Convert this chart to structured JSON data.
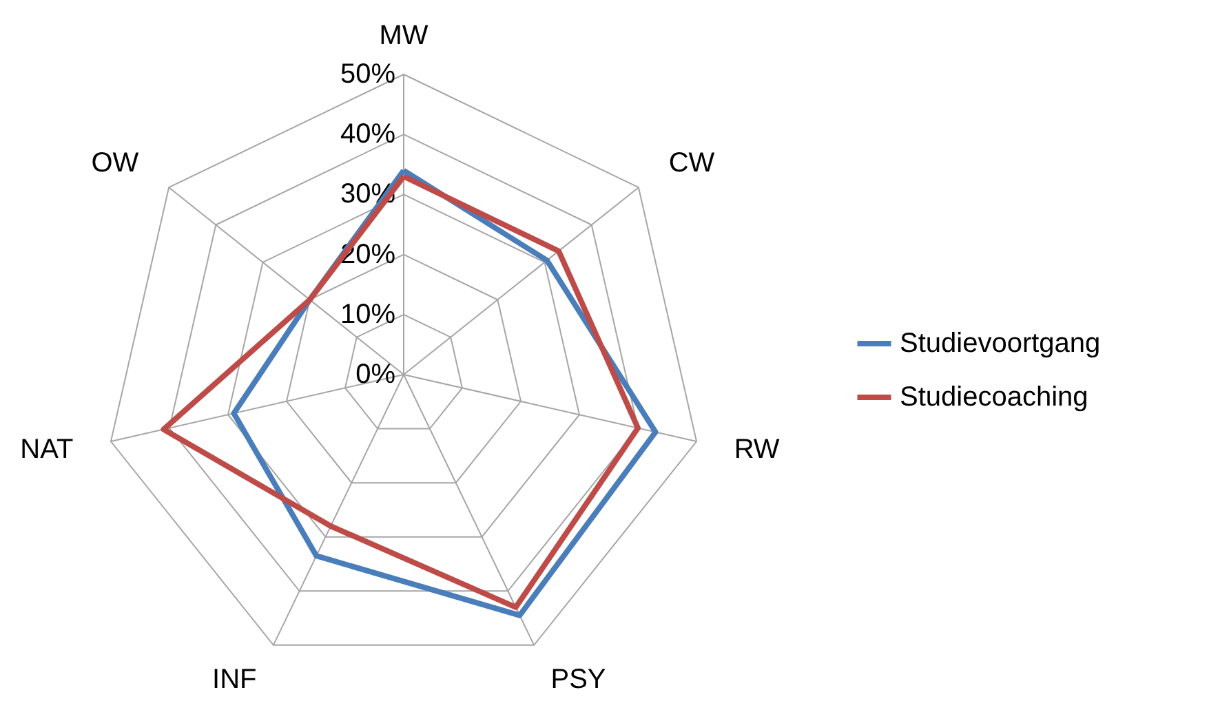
{
  "chart_data": {
    "type": "radar",
    "categories": [
      "MW",
      "CW",
      "RW",
      "PSY",
      "INF",
      "NAT",
      "OW"
    ],
    "series": [
      {
        "name": "Studievoortgang",
        "color": "#4a7ebb",
        "values": [
          34,
          30.5,
          43,
          44.5,
          33.5,
          29,
          20
        ]
      },
      {
        "name": "Studiecoaching",
        "color": "#be4b48",
        "values": [
          33,
          33,
          40,
          43,
          28,
          41,
          20
        ]
      }
    ],
    "ylim": [
      0,
      50
    ],
    "yticks": [
      {
        "value": 0,
        "label": "0%"
      },
      {
        "value": 10,
        "label": "10%"
      },
      {
        "value": 20,
        "label": "20%"
      },
      {
        "value": 30,
        "label": "30%"
      },
      {
        "value": 40,
        "label": "40%"
      },
      {
        "value": 50,
        "label": "50%"
      }
    ],
    "grid": true,
    "legend": "right"
  }
}
